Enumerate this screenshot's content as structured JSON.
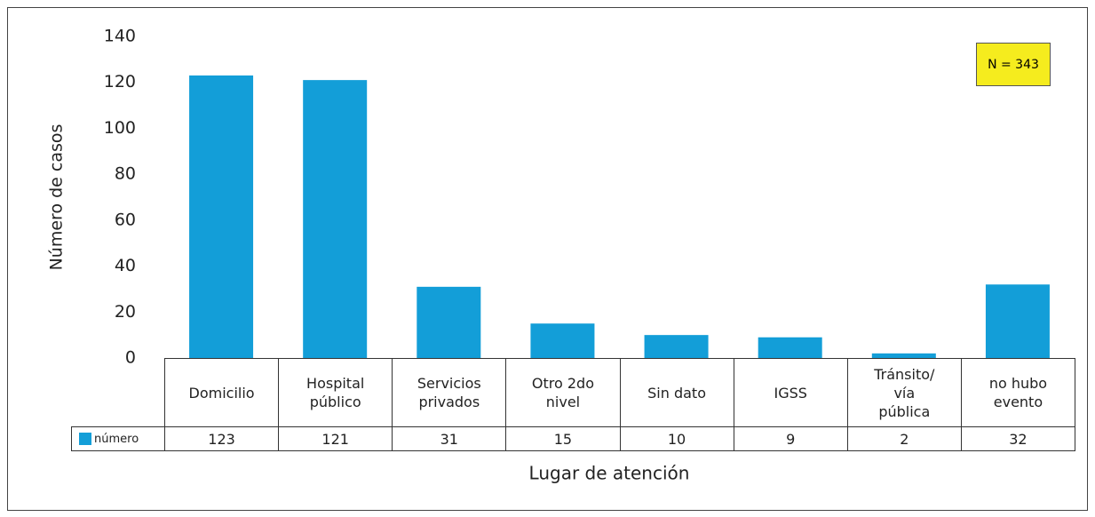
{
  "chart_data": {
    "type": "bar",
    "x_label": "Lugar de atención",
    "y_label": "Número de casos",
    "annotation": "N = 343",
    "categories": [
      "Domicilio",
      "Hospital\npúblico",
      "Servicios\nprivados",
      "Otro 2do\nnivel",
      "Sin dato",
      "IGSS",
      "Tránsito/\nvía\npública",
      "no hubo\nevento"
    ],
    "series": [
      {
        "name": "número",
        "color": "#139ed8",
        "values": [
          123,
          121,
          31,
          15,
          10,
          9,
          2,
          32
        ]
      }
    ],
    "ylim": [
      0,
      140
    ],
    "yticks": [
      0,
      20,
      40,
      60,
      80,
      100,
      120,
      140
    ],
    "grid": false,
    "legend": "bottom-left"
  }
}
